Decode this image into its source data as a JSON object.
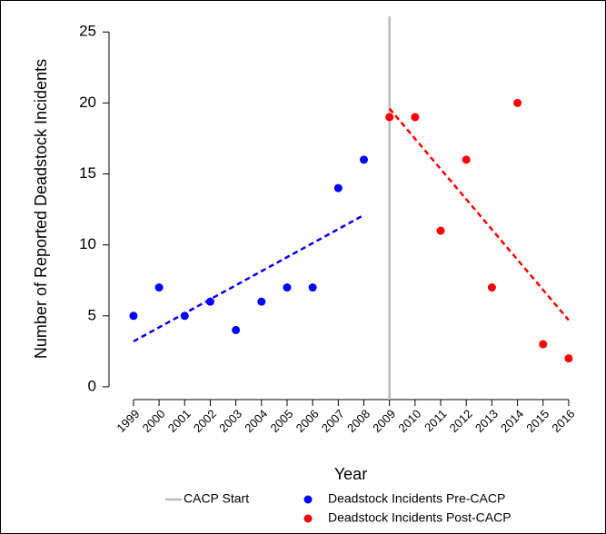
{
  "chart_data": {
    "type": "scatter",
    "x_label": "Year",
    "y_label": "Number of Reported Deadstock Incidents",
    "xlim": [
      1998.4,
      2016.5
    ],
    "ylim": [
      -0.9,
      26.1
    ],
    "xticks": [
      1999,
      2000,
      2001,
      2002,
      2003,
      2004,
      2005,
      2006,
      2007,
      2008,
      2009,
      2010,
      2011,
      2012,
      2013,
      2014,
      2015,
      2016
    ],
    "yticks": [
      0,
      5,
      10,
      15,
      20,
      25
    ],
    "legend": "bottom",
    "vline": {
      "name": "CACP Start",
      "x": 2009,
      "color": "#bbbbbb"
    },
    "series": [
      {
        "name": "Deadstock Incidents Pre-CACP",
        "color": "#0000ff",
        "x": [
          1999,
          2000,
          2001,
          2002,
          2003,
          2004,
          2005,
          2006,
          2007,
          2008
        ],
        "values": [
          5,
          7,
          5,
          6,
          4,
          6,
          7,
          7,
          14,
          16
        ]
      },
      {
        "name": "Deadstock Incidents Post-CACP",
        "color": "#ff0000",
        "x": [
          2009,
          2010,
          2011,
          2012,
          2013,
          2014,
          2015,
          2016
        ],
        "values": [
          19,
          19,
          11,
          16,
          7,
          20,
          3,
          2
        ]
      }
    ],
    "trend_lines": [
      {
        "color": "#0000ff",
        "x": [
          1999,
          2008
        ],
        "values": [
          3.2,
          12.1
        ]
      },
      {
        "color": "#ff0000",
        "x": [
          2009,
          2016
        ],
        "values": [
          19.6,
          4.7
        ]
      }
    ]
  }
}
